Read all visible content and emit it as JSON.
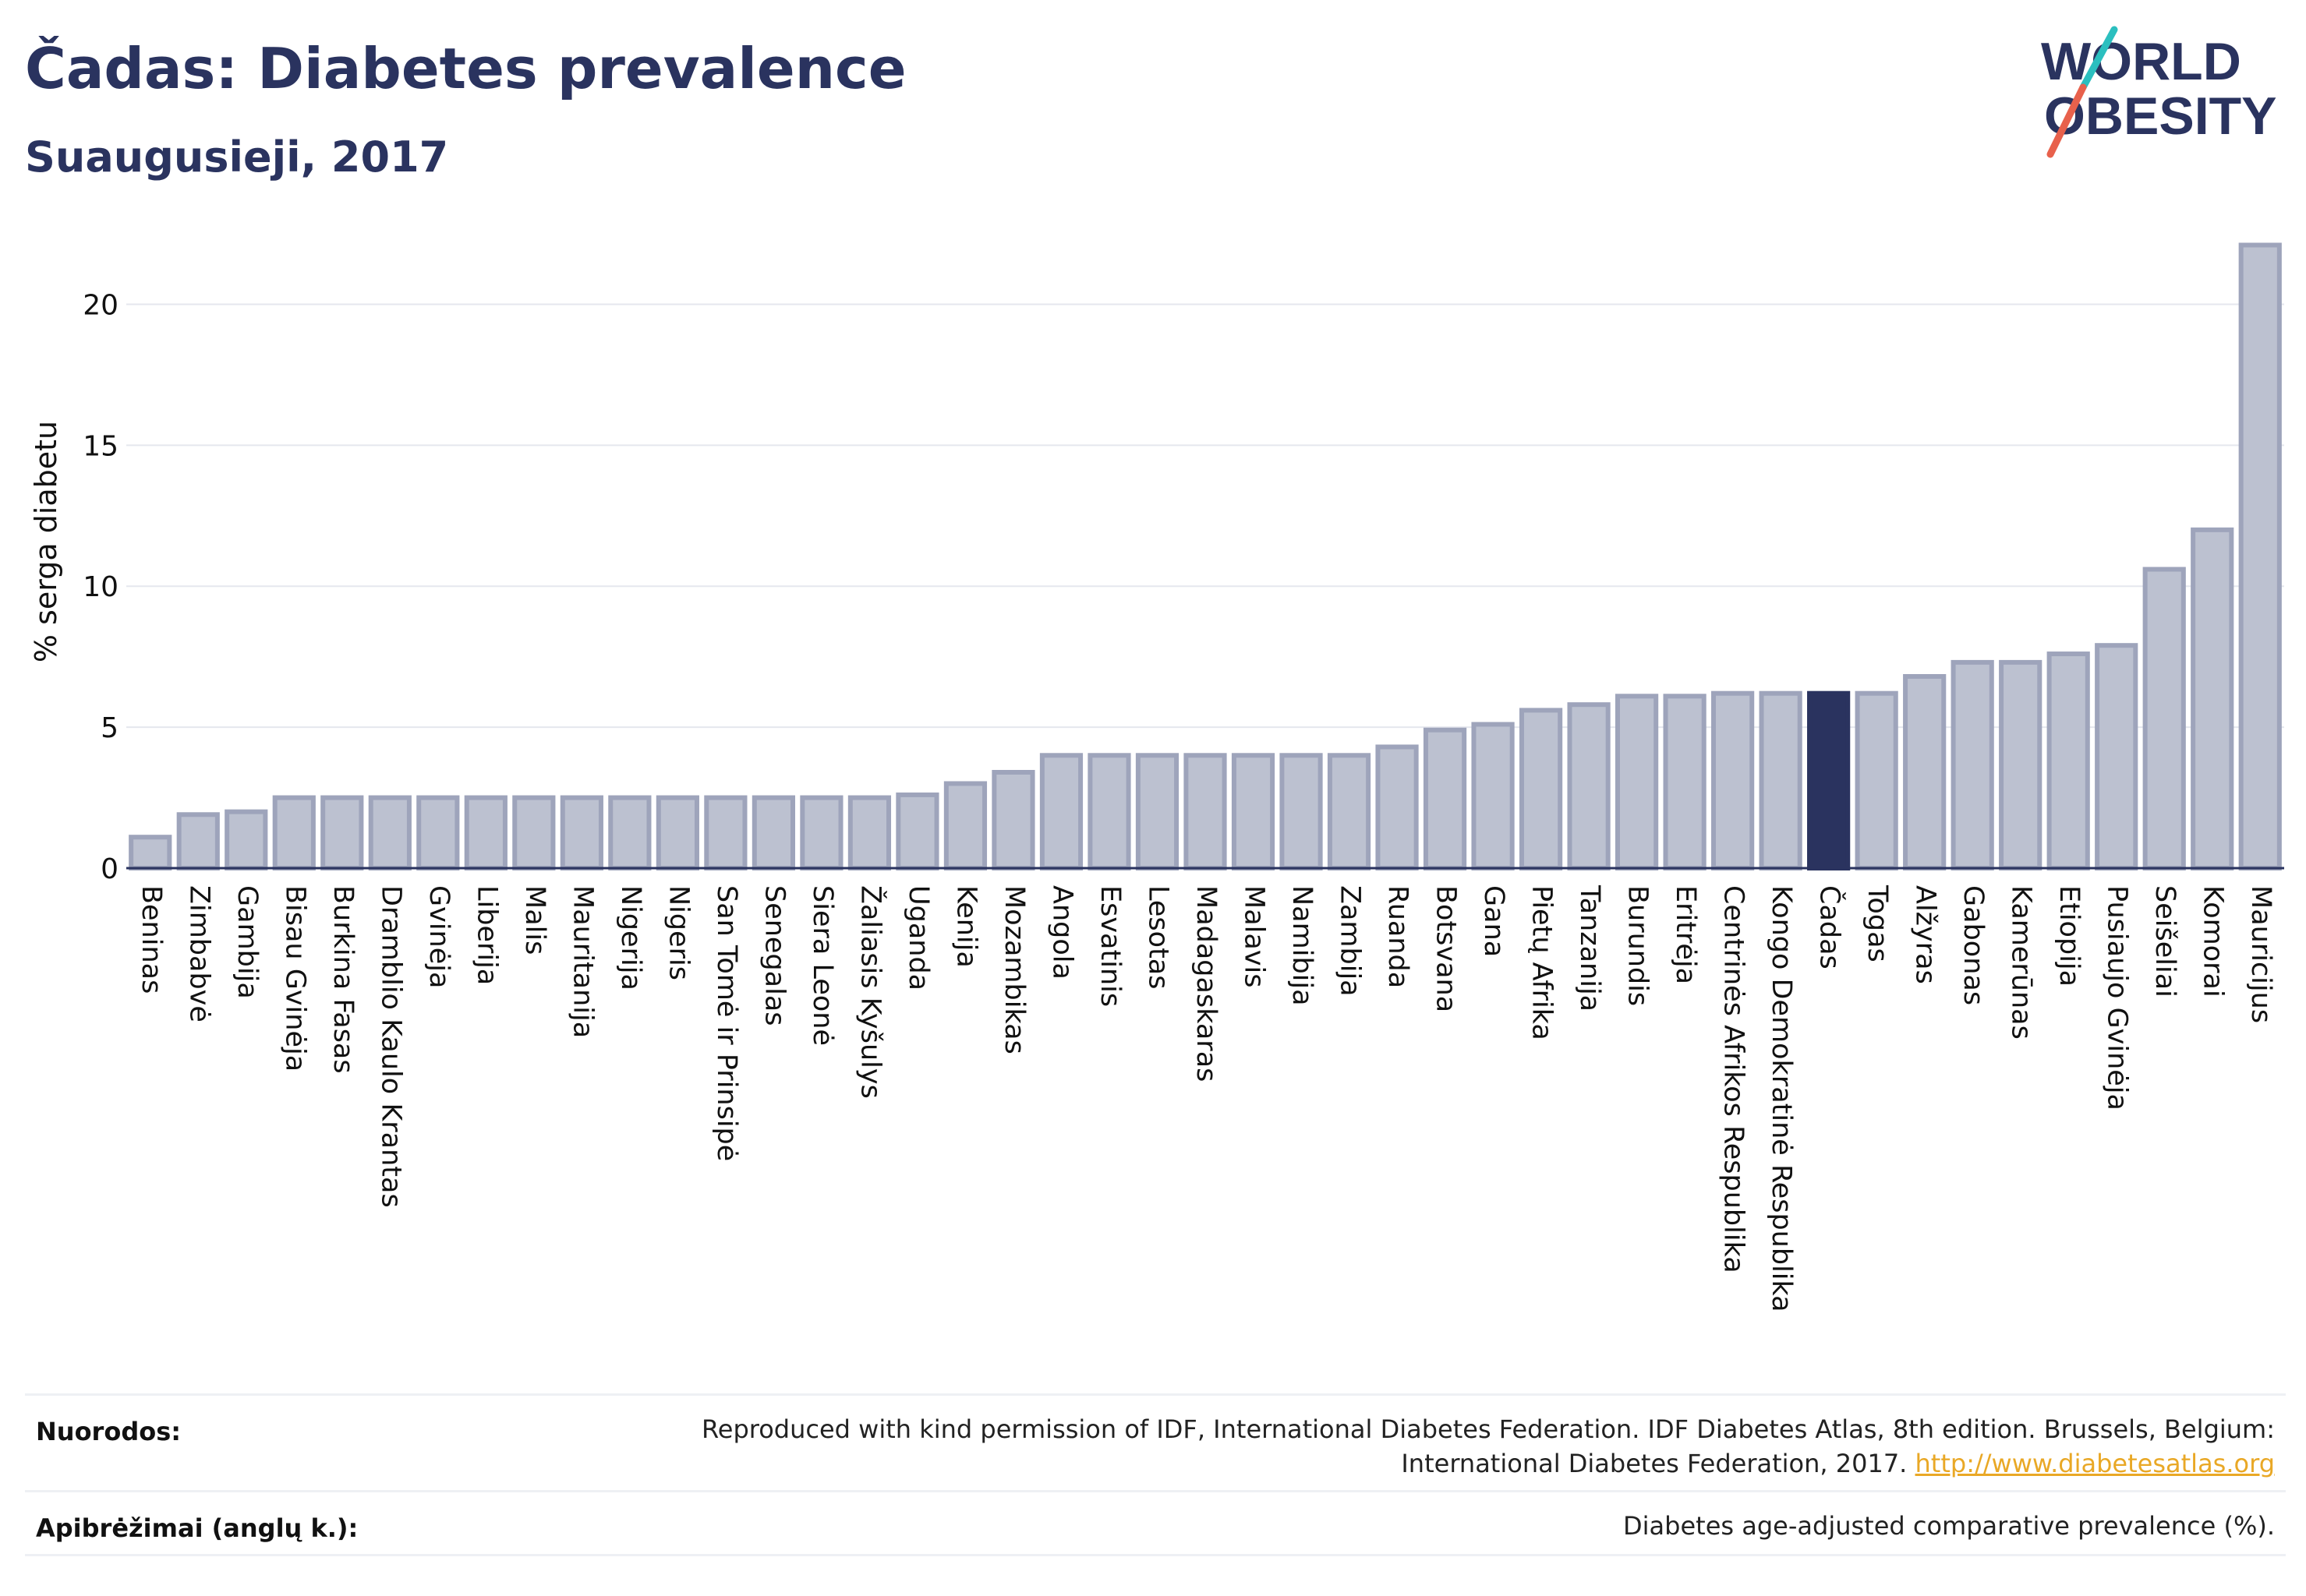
{
  "header": {
    "title": "Čadas: Diabetes prevalence",
    "subtitle": "Suaugusieji, 2017"
  },
  "logo": {
    "line1": "WORLD",
    "line2": "OBESITY",
    "colors": {
      "text": "#2a335f",
      "slash_top": "#2bbfbf",
      "slash_bottom": "#e8614c"
    }
  },
  "chart_data": {
    "type": "bar",
    "title": "",
    "xlabel": "",
    "ylabel": "% serga diabetu",
    "ylim": [
      0,
      22.5
    ],
    "yticks": [
      0,
      5,
      10,
      15,
      20
    ],
    "grid": true,
    "highlight": "Čadas",
    "colors": {
      "bar": "#bcc1d0",
      "bar_border": "#9ea4bb",
      "highlight": "#2a335f",
      "grid": "#e5e7ee"
    },
    "categories": [
      "Beninas",
      "Zimbabvė",
      "Gambija",
      "Bisau Gvinėja",
      "Burkina Fasas",
      "Dramblio Kaulo Krantas",
      "Gvinėja",
      "Liberija",
      "Malis",
      "Mauritanija",
      "Nigerija",
      "Nigeris",
      "San Tomė ir Prinsipė",
      "Senegalas",
      "Siera Leonė",
      "Žaliasis Kyšulys",
      "Uganda",
      "Kenija",
      "Mozambikas",
      "Angola",
      "Esvatinis",
      "Lesotas",
      "Madagaskaras",
      "Malavis",
      "Namibija",
      "Zambija",
      "Ruanda",
      "Botsvana",
      "Gana",
      "Pietų Afrika",
      "Tanzanija",
      "Burundis",
      "Eritrėja",
      "Centrinės Afrikos Respublika",
      "Kongo Demokratinė Respublika",
      "Čadas",
      "Togas",
      "Alžyras",
      "Gabonas",
      "Kamerūnas",
      "Etiopija",
      "Pusiaujo Gvinėja",
      "Seišeliai",
      "Komorai",
      "Mauricijus"
    ],
    "values": [
      1.1,
      1.9,
      2.0,
      2.5,
      2.5,
      2.5,
      2.5,
      2.5,
      2.5,
      2.5,
      2.5,
      2.5,
      2.5,
      2.5,
      2.5,
      2.5,
      2.6,
      3.0,
      3.4,
      4.0,
      4.0,
      4.0,
      4.0,
      4.0,
      4.0,
      4.0,
      4.3,
      4.9,
      5.1,
      5.6,
      5.8,
      6.1,
      6.1,
      6.2,
      6.2,
      6.2,
      6.2,
      6.8,
      7.3,
      7.3,
      7.6,
      7.9,
      10.6,
      12.0,
      22.1
    ]
  },
  "footer": {
    "refs_label": "Nuorodos:",
    "refs_line1": "Reproduced with kind permission of IDF, International Diabetes Federation. IDF Diabetes Atlas, 8th edition. Brussels, Belgium:",
    "refs_line2": "International Diabetes Federation, 2017.",
    "refs_link": "http://www.diabetesatlas.org",
    "def_label": "Apibrėžimai (anglų k.):",
    "def_text": "Diabetes age-adjusted comparative prevalence (%)."
  }
}
